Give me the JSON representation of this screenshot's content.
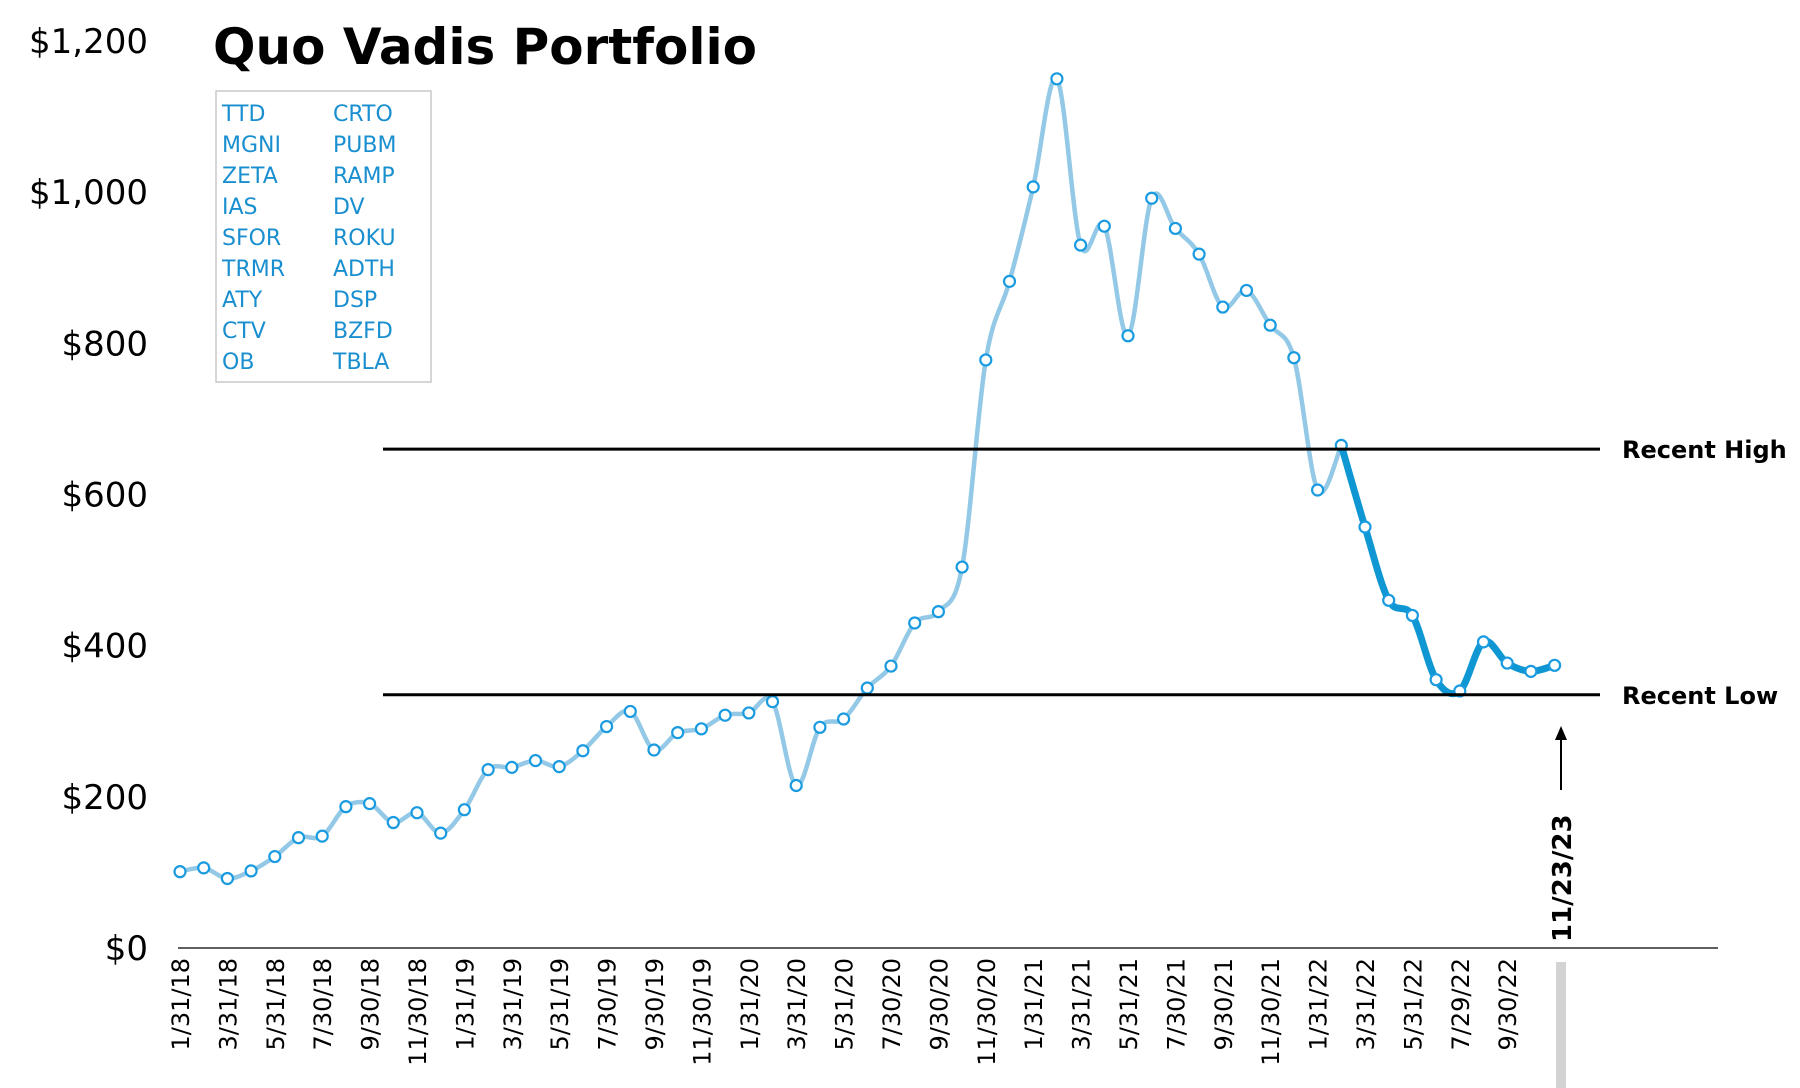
{
  "colors": {
    "line_light": "#93c9e6",
    "line_dark": "#0f97d3",
    "marker_stroke": "#1a9be0",
    "holdings_text": "#1a8fd0"
  },
  "chart_data": {
    "type": "line",
    "title": "Quo Vadis Portfolio",
    "xlabel": "",
    "ylabel": "",
    "ylim": [
      0,
      1200
    ],
    "yticks": [
      "$0",
      "$200",
      "$400",
      "$600",
      "$800",
      "$1,000",
      "$1,200"
    ],
    "x_tick_labels": [
      "1/31/18",
      "3/31/18",
      "5/31/18",
      "7/30/18",
      "9/30/18",
      "11/30/18",
      "1/31/19",
      "3/31/19",
      "5/31/19",
      "7/30/19",
      "9/30/19",
      "11/30/19",
      "1/31/20",
      "3/31/20",
      "5/31/20",
      "7/30/20",
      "9/30/20",
      "11/30/20",
      "1/31/21",
      "3/31/21",
      "5/31/21",
      "7/30/21",
      "9/30/21",
      "11/30/21",
      "1/31/22",
      "3/31/22",
      "5/31/22",
      "7/29/22",
      "9/30/22"
    ],
    "values": [
      101,
      106,
      92,
      102,
      121,
      146,
      148,
      187,
      191,
      166,
      179,
      152,
      183,
      236,
      239,
      248,
      240,
      261,
      293,
      313,
      262,
      285,
      290,
      308,
      311,
      326,
      215,
      292,
      303,
      344,
      373,
      430,
      445,
      504,
      778,
      882,
      1007,
      1150,
      930,
      955,
      810,
      992,
      952,
      918,
      848,
      870,
      824,
      781,
      606,
      665,
      557,
      460,
      440,
      355,
      340,
      405,
      377,
      366,
      374
    ],
    "highlight_from_index": 49,
    "holdings": [
      [
        "TTD",
        "CRTO"
      ],
      [
        "MGNI",
        "PUBM"
      ],
      [
        "ZETA",
        "RAMP"
      ],
      [
        "IAS",
        "DV"
      ],
      [
        "SFOR",
        "ROKU"
      ],
      [
        "TRMR",
        "ADTH"
      ],
      [
        "ATY",
        "DSP"
      ],
      [
        "CTV",
        "BZFD"
      ],
      [
        "OB",
        "TBLA"
      ]
    ],
    "reference_lines": [
      {
        "label": "Recent High",
        "value": 660
      },
      {
        "label": "Recent Low",
        "value": 335
      }
    ],
    "annotation": "11/23/23"
  }
}
